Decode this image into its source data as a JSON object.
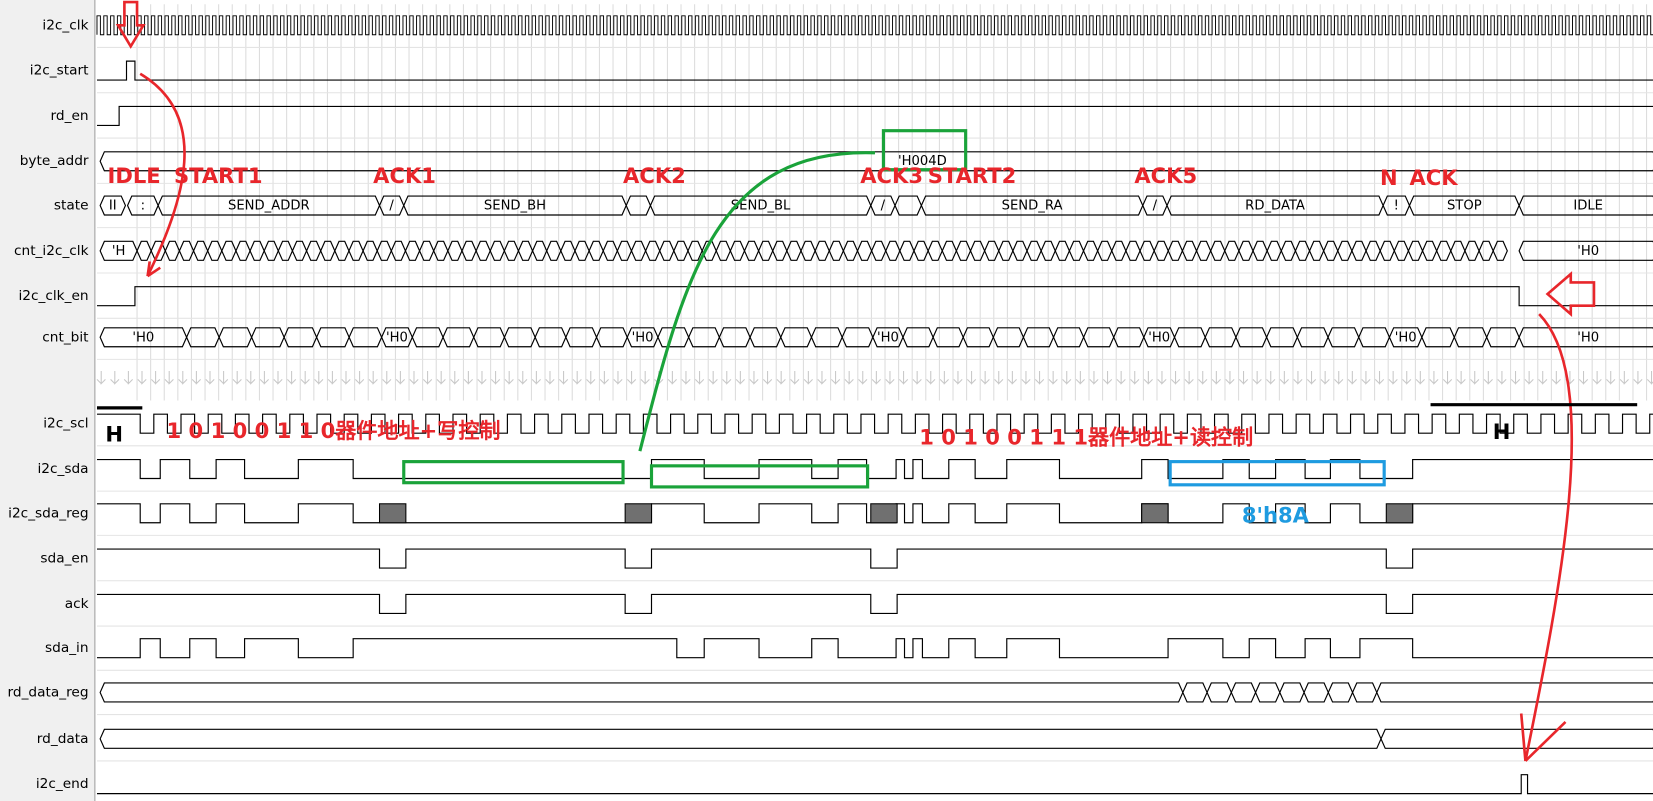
{
  "signals": [
    "i2c_clk",
    "i2c_start",
    "rd_en",
    "byte_addr",
    "state",
    "cnt_i2c_clk",
    "i2c_clk_en",
    "cnt_bit",
    "i2c_scl",
    "i2c_sda",
    "i2c_sda_reg",
    "sda_en",
    "ack",
    "sda_in",
    "rd_data_reg",
    "rd_data",
    "i2c_end"
  ],
  "byte_addr": "'H004D",
  "states": [
    "II",
    ":",
    "SEND_ADDR",
    "/",
    "SEND_BH",
    "SEND_BL",
    "/",
    "SEND_RA",
    "/",
    "RD_DATA",
    "!",
    "STOP",
    "IDLE"
  ],
  "cnt_i2c_clk": [
    "'H",
    "'H0"
  ],
  "cnt_bit": [
    "'H0",
    "'H0",
    "'H0",
    "'H0",
    "'H0",
    "'H0",
    "'H0"
  ],
  "annotations": {
    "idle": "IDLE",
    "start1": "START1",
    "ack1": "ACK1",
    "ack2": "ACK2",
    "ack3": "ACK3",
    "start2": "START2",
    "ack5": "ACK5",
    "n": "N",
    "ack": "ACK",
    "h_left": "H",
    "h_right": "H",
    "write_bits": "1 0 1 0 0 1 1 0器件地址+写控制",
    "read_bits": "1 0 1 0 0 1 1 1器件地址+读控制",
    "read_value": "8'h8A"
  }
}
